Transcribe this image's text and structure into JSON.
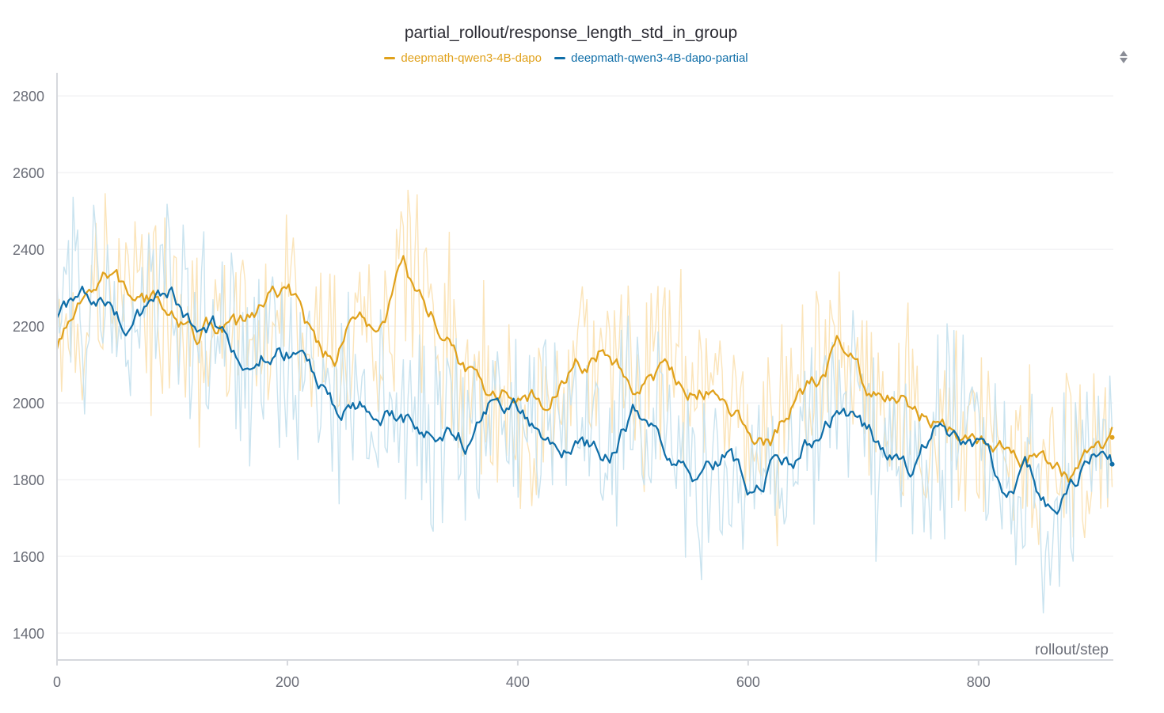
{
  "chart_data": {
    "type": "line",
    "title": "partial_rollout/response_length_std_in_group",
    "xlabel": "rollout/step",
    "ylabel": "",
    "xlim": [
      0,
      917
    ],
    "ylim": [
      1330,
      2860
    ],
    "x_ticks": [
      0,
      200,
      400,
      600,
      800
    ],
    "y_ticks": [
      1400,
      1600,
      1800,
      2000,
      2200,
      2400,
      2600,
      2800
    ],
    "grid": "horizontal",
    "legend_position": "top-center",
    "smoothing": "raw series shown faded behind smoothed line",
    "series": [
      {
        "name": "deepmath-qwen3-4B-dapo",
        "color": "#e0a11b",
        "raw_color": "#fbe3b5",
        "x": [
          0,
          20,
          40,
          60,
          80,
          100,
          120,
          140,
          160,
          180,
          200,
          220,
          240,
          260,
          280,
          300,
          320,
          340,
          360,
          380,
          400,
          420,
          440,
          460,
          480,
          500,
          520,
          540,
          560,
          580,
          600,
          620,
          640,
          660,
          680,
          700,
          720,
          740,
          760,
          780,
          800,
          820,
          840,
          860,
          880,
          900,
          916
        ],
        "values": [
          2150,
          2230,
          2340,
          2280,
          2260,
          2250,
          2180,
          2210,
          2190,
          2250,
          2310,
          2170,
          2110,
          2220,
          2180,
          2330,
          2230,
          2170,
          2060,
          2010,
          2030,
          2000,
          2070,
          2110,
          2150,
          2030,
          2080,
          2060,
          2050,
          2000,
          1940,
          1910,
          2010,
          2060,
          2170,
          2050,
          2020,
          1990,
          1950,
          1900,
          1880,
          1910,
          1870,
          1830,
          1790,
          1870,
          1910
        ]
      },
      {
        "name": "deepmath-qwen3-4B-dapo-partial",
        "color": "#0f6ea8",
        "raw_color": "#c6e1ee",
        "x": [
          0,
          20,
          40,
          60,
          80,
          100,
          120,
          140,
          160,
          180,
          200,
          220,
          240,
          260,
          280,
          300,
          320,
          340,
          360,
          380,
          400,
          420,
          440,
          460,
          480,
          500,
          520,
          540,
          560,
          580,
          600,
          620,
          640,
          660,
          680,
          700,
          720,
          740,
          760,
          780,
          800,
          820,
          840,
          860,
          880,
          900,
          916
        ],
        "values": [
          2230,
          2270,
          2300,
          2220,
          2230,
          2270,
          2170,
          2180,
          2120,
          2140,
          2130,
          2080,
          1980,
          2000,
          1980,
          1960,
          1920,
          1950,
          1900,
          2040,
          2000,
          1920,
          1900,
          1890,
          1880,
          1990,
          1950,
          1850,
          1800,
          1870,
          1780,
          1850,
          1860,
          1930,
          1980,
          1930,
          1880,
          1840,
          1920,
          1930,
          1880,
          1780,
          1830,
          1720,
          1790,
          1880,
          1840
        ]
      }
    ]
  }
}
